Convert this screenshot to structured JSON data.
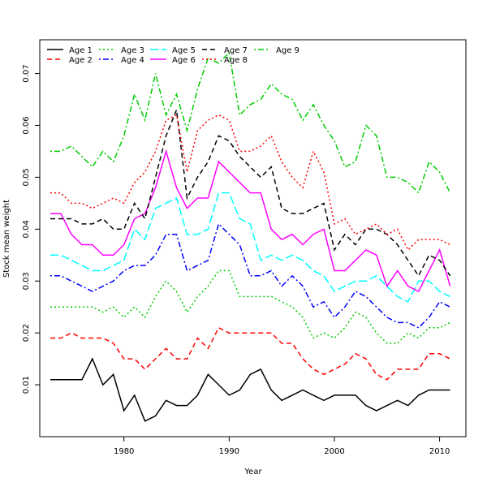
{
  "chart_data": {
    "type": "line",
    "title": "",
    "xlabel": "Year",
    "ylabel": "Stock mean weight",
    "xlim": [
      1972,
      2012.5
    ],
    "ylim": [
      0.0,
      0.0765
    ],
    "xticks": [
      1980,
      1990,
      2000,
      2010
    ],
    "yticks": [
      0.01,
      0.02,
      0.03,
      0.04,
      0.05,
      0.06,
      0.07
    ],
    "legend_position": "top-left",
    "grid": false,
    "x": [
      1973,
      1974,
      1975,
      1976,
      1977,
      1978,
      1979,
      1980,
      1981,
      1982,
      1983,
      1984,
      1985,
      1986,
      1987,
      1988,
      1989,
      1990,
      1991,
      1992,
      1993,
      1994,
      1995,
      1996,
      1997,
      1998,
      1999,
      2000,
      2001,
      2002,
      2003,
      2004,
      2005,
      2006,
      2007,
      2008,
      2009,
      2010,
      2011
    ],
    "series": [
      {
        "name": "Age 1",
        "color": "#000000",
        "dash": "solid",
        "values": [
          0.011,
          0.011,
          0.011,
          0.011,
          0.015,
          0.01,
          0.012,
          0.005,
          0.008,
          0.003,
          0.004,
          0.007,
          0.006,
          0.006,
          0.008,
          0.012,
          0.01,
          0.008,
          0.009,
          0.012,
          0.013,
          0.009,
          0.007,
          0.008,
          0.009,
          0.008,
          0.007,
          0.008,
          0.008,
          0.008,
          0.006,
          0.005,
          0.006,
          0.007,
          0.006,
          0.008,
          0.009,
          0.009,
          0.009
        ]
      },
      {
        "name": "Age 2",
        "color": "#ff0000",
        "dash": "dashed",
        "values": [
          0.019,
          0.019,
          0.02,
          0.019,
          0.019,
          0.019,
          0.018,
          0.015,
          0.015,
          0.013,
          0.015,
          0.017,
          0.015,
          0.015,
          0.019,
          0.017,
          0.021,
          0.02,
          0.02,
          0.02,
          0.02,
          0.02,
          0.018,
          0.018,
          0.015,
          0.013,
          0.012,
          0.013,
          0.014,
          0.016,
          0.015,
          0.012,
          0.011,
          0.013,
          0.013,
          0.013,
          0.016,
          0.016,
          0.015
        ]
      },
      {
        "name": "Age 3",
        "color": "#00cd00",
        "dash": "dotted",
        "values": [
          0.025,
          0.025,
          0.025,
          0.025,
          0.025,
          0.024,
          0.025,
          0.023,
          0.025,
          0.023,
          0.027,
          0.03,
          0.028,
          0.024,
          0.027,
          0.029,
          0.032,
          0.032,
          0.027,
          0.027,
          0.027,
          0.027,
          0.026,
          0.025,
          0.023,
          0.019,
          0.02,
          0.019,
          0.021,
          0.024,
          0.023,
          0.02,
          0.018,
          0.018,
          0.02,
          0.019,
          0.021,
          0.021,
          0.022
        ]
      },
      {
        "name": "Age 4",
        "color": "#0000ff",
        "dash": "dotdash",
        "values": [
          0.031,
          0.031,
          0.03,
          0.029,
          0.028,
          0.029,
          0.03,
          0.032,
          0.033,
          0.033,
          0.035,
          0.039,
          0.039,
          0.032,
          0.033,
          0.034,
          0.041,
          0.039,
          0.037,
          0.031,
          0.031,
          0.032,
          0.029,
          0.031,
          0.029,
          0.025,
          0.026,
          0.023,
          0.025,
          0.028,
          0.027,
          0.025,
          0.023,
          0.022,
          0.022,
          0.021,
          0.023,
          0.026,
          0.025
        ]
      },
      {
        "name": "Age 5",
        "color": "#00ffff",
        "dash": "longdash",
        "values": [
          0.035,
          0.035,
          0.034,
          0.033,
          0.032,
          0.032,
          0.033,
          0.034,
          0.04,
          0.038,
          0.044,
          0.045,
          0.046,
          0.039,
          0.039,
          0.04,
          0.047,
          0.047,
          0.042,
          0.041,
          0.034,
          0.035,
          0.034,
          0.035,
          0.034,
          0.032,
          0.031,
          0.028,
          0.029,
          0.03,
          0.03,
          0.031,
          0.029,
          0.027,
          0.026,
          0.03,
          0.03,
          0.028,
          0.027
        ]
      },
      {
        "name": "Age 6",
        "color": "#ff00ff",
        "dash": "solid",
        "values": [
          0.043,
          0.043,
          0.039,
          0.037,
          0.037,
          0.035,
          0.035,
          0.037,
          0.042,
          0.043,
          0.048,
          0.055,
          0.048,
          0.044,
          0.046,
          0.046,
          0.053,
          0.051,
          0.049,
          0.047,
          0.047,
          0.04,
          0.038,
          0.039,
          0.037,
          0.039,
          0.04,
          0.032,
          0.032,
          0.034,
          0.036,
          0.035,
          0.029,
          0.032,
          0.029,
          0.028,
          0.032,
          0.036,
          0.029
        ]
      },
      {
        "name": "Age 7",
        "color": "#000000",
        "dash": "dashed",
        "values": [
          0.042,
          0.042,
          0.042,
          0.041,
          0.041,
          0.042,
          0.04,
          0.04,
          0.045,
          0.042,
          0.05,
          0.058,
          0.063,
          0.046,
          0.05,
          0.053,
          0.058,
          0.057,
          0.054,
          0.052,
          0.05,
          0.052,
          0.044,
          0.043,
          0.043,
          0.044,
          0.045,
          0.036,
          0.039,
          0.037,
          0.04,
          0.04,
          0.039,
          0.037,
          0.034,
          0.031,
          0.035,
          0.034,
          0.031
        ]
      },
      {
        "name": "Age 8",
        "color": "#ff0000",
        "dash": "dotted",
        "values": [
          0.047,
          0.047,
          0.045,
          0.045,
          0.044,
          0.045,
          0.046,
          0.045,
          0.049,
          0.051,
          0.055,
          0.061,
          0.062,
          0.051,
          0.059,
          0.061,
          0.062,
          0.061,
          0.055,
          0.055,
          0.056,
          0.058,
          0.053,
          0.05,
          0.048,
          0.055,
          0.051,
          0.041,
          0.042,
          0.039,
          0.04,
          0.041,
          0.039,
          0.04,
          0.036,
          0.038,
          0.038,
          0.038,
          0.037
        ]
      },
      {
        "name": "Age 9",
        "color": "#00cd00",
        "dash": "dotdash",
        "values": [
          0.055,
          0.055,
          0.056,
          0.054,
          0.052,
          0.055,
          0.053,
          0.058,
          0.066,
          0.061,
          0.07,
          0.062,
          0.066,
          0.059,
          0.067,
          0.073,
          0.072,
          0.074,
          0.062,
          0.064,
          0.065,
          0.068,
          0.066,
          0.065,
          0.061,
          0.064,
          0.06,
          0.057,
          0.052,
          0.053,
          0.06,
          0.058,
          0.05,
          0.05,
          0.049,
          0.047,
          0.053,
          0.051,
          0.047
        ]
      }
    ]
  }
}
